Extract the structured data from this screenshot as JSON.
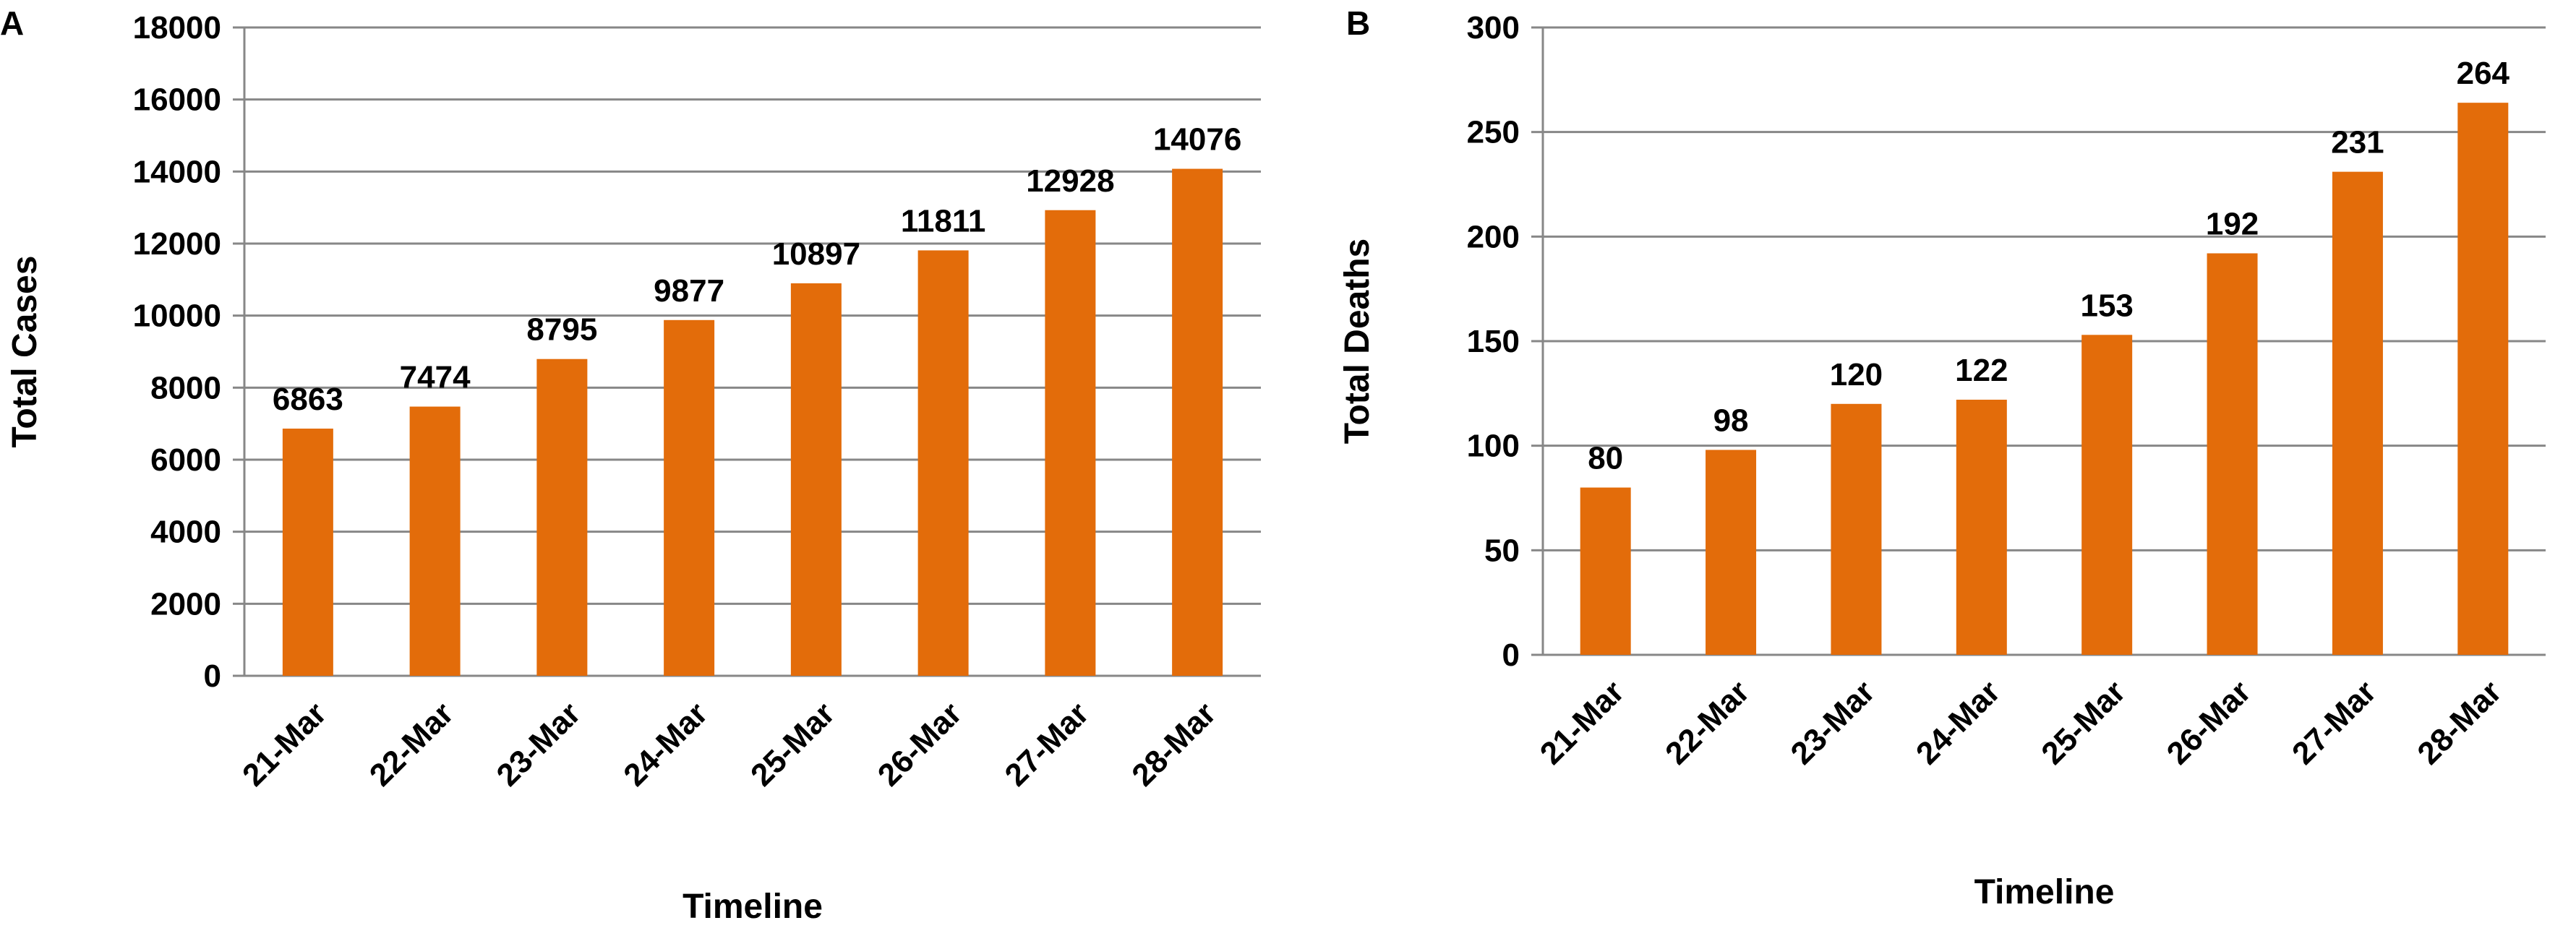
{
  "chart_data": [
    {
      "panel": "A",
      "type": "bar",
      "categories": [
        "21-Mar",
        "22-Mar",
        "23-Mar",
        "24-Mar",
        "25-Mar",
        "26-Mar",
        "27-Mar",
        "28-Mar"
      ],
      "values": [
        6863,
        7474,
        8795,
        9877,
        10897,
        11811,
        12928,
        14076
      ],
      "xlabel": "Timeline",
      "ylabel": "Total Cases",
      "ylim": [
        0,
        18000
      ],
      "yticks": [
        "0",
        "2000",
        "4000",
        "6000",
        "8000",
        "10000",
        "12000",
        "14000",
        "16000",
        "18000"
      ],
      "grid": true,
      "legend": "none",
      "bar_color": "#E36C0A",
      "data_labels": true
    },
    {
      "panel": "B",
      "type": "bar",
      "categories": [
        "21-Mar",
        "22-Mar",
        "23-Mar",
        "24-Mar",
        "25-Mar",
        "26-Mar",
        "27-Mar",
        "28-Mar"
      ],
      "values": [
        80,
        98,
        120,
        122,
        153,
        192,
        231,
        264
      ],
      "xlabel": "Timeline",
      "ylabel": "Total Deaths",
      "ylim": [
        0,
        300
      ],
      "yticks": [
        "0",
        "50",
        "100",
        "150",
        "200",
        "250",
        "300"
      ],
      "grid": true,
      "legend": "none",
      "bar_color": "#E36C0A",
      "data_labels": true
    }
  ],
  "colors": {
    "bar": "#E36C0A",
    "grid": "#878787",
    "text": "#000000"
  }
}
